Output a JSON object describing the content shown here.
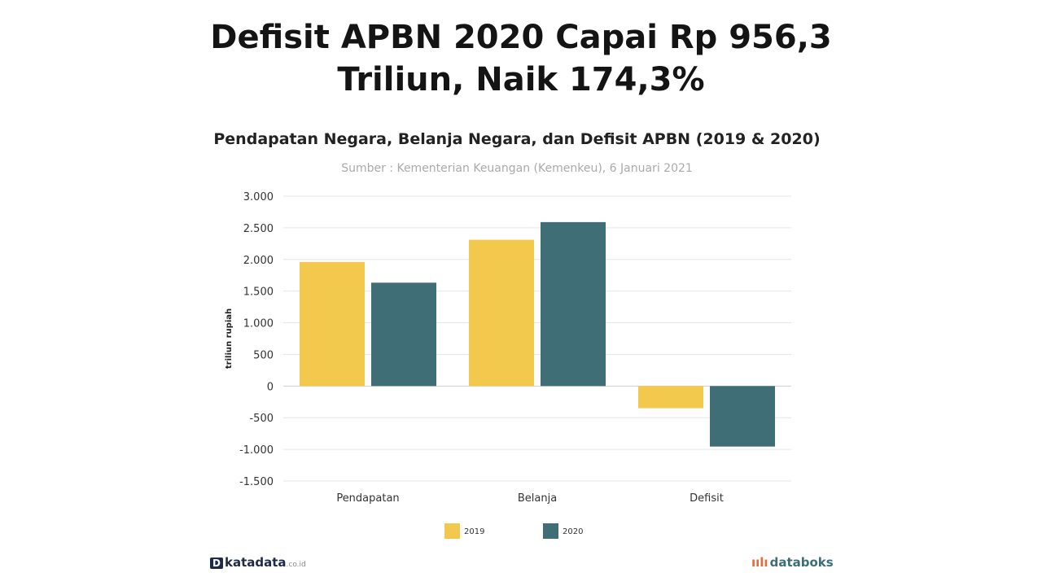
{
  "headline": {
    "line1": "Defisit APBN 2020 Capai Rp 956,3",
    "line2": "Triliun, Naik 174,3%"
  },
  "chart_data": {
    "type": "bar",
    "title": "Pendapatan Negara, Belanja Negara, dan Defisit APBN (2019 & 2020)",
    "subtitle": "Sumber : Kementerian Keuangan (Kemenkeu), 6 Januari 2021",
    "xlabel": "",
    "ylabel": "triliun rupiah",
    "categories": [
      "Pendapatan",
      "Belanja",
      "Defisit"
    ],
    "series": [
      {
        "name": "2019",
        "color": "#F2C94C",
        "values": [
          1960,
          2310,
          -350
        ]
      },
      {
        "name": "2020",
        "color": "#3F6E77",
        "values": [
          1633,
          2590,
          -956
        ]
      }
    ],
    "ylim": [
      -1500,
      3000
    ],
    "yticks": [
      3000,
      2500,
      2000,
      1500,
      1000,
      500,
      0,
      -500,
      -1000,
      -1500
    ],
    "ytick_labels": [
      "3.000",
      "2.500",
      "2.000",
      "1.500",
      "1.000",
      "500",
      "0",
      "-500",
      "-1.000",
      "-1.500"
    ],
    "grid": true,
    "legend_position": "bottom-center"
  },
  "branding": {
    "left_mark": "D",
    "left_name": "katadata",
    "left_suffix": ".co.id",
    "right_mark": "ıılı",
    "right_name": "databoks"
  }
}
